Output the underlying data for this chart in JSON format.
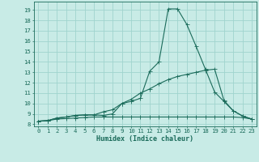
{
  "xlabel": "Humidex (Indice chaleur)",
  "bg_color": "#c8ebe6",
  "grid_color": "#a0d4ce",
  "line_color": "#1a6b5a",
  "xlim": [
    -0.5,
    23.5
  ],
  "ylim": [
    7.8,
    19.8
  ],
  "xticks": [
    0,
    1,
    2,
    3,
    4,
    5,
    6,
    7,
    8,
    9,
    10,
    11,
    12,
    13,
    14,
    15,
    16,
    17,
    18,
    19,
    20,
    21,
    22,
    23
  ],
  "yticks": [
    8,
    9,
    10,
    11,
    12,
    13,
    14,
    15,
    16,
    17,
    18,
    19
  ],
  "line1_x": [
    0,
    1,
    2,
    3,
    4,
    5,
    6,
    7,
    8,
    9,
    10,
    11,
    12,
    13,
    14,
    15,
    16,
    17,
    18,
    19,
    20,
    21,
    22,
    23
  ],
  "line1_y": [
    8.3,
    8.35,
    8.6,
    8.7,
    8.85,
    8.9,
    8.9,
    8.85,
    9.0,
    10.0,
    10.2,
    10.5,
    13.1,
    14.0,
    19.1,
    19.1,
    17.6,
    15.5,
    13.3,
    11.1,
    10.2,
    9.3,
    8.8,
    8.5
  ],
  "line2_x": [
    0,
    1,
    2,
    3,
    4,
    5,
    6,
    7,
    8,
    9,
    10,
    11,
    12,
    13,
    14,
    15,
    16,
    17,
    18,
    19,
    20,
    21,
    22,
    23
  ],
  "line2_y": [
    8.3,
    8.35,
    8.6,
    8.7,
    8.85,
    8.9,
    8.9,
    9.2,
    9.4,
    10.0,
    10.4,
    11.0,
    11.4,
    11.9,
    12.3,
    12.6,
    12.8,
    13.0,
    13.2,
    13.3,
    10.3,
    9.3,
    8.8,
    8.5
  ],
  "line3_x": [
    0,
    1,
    2,
    3,
    4,
    5,
    6,
    7,
    8,
    9,
    10,
    11,
    12,
    13,
    14,
    15,
    16,
    17,
    18,
    19,
    20,
    21,
    22,
    23
  ],
  "line3_y": [
    8.3,
    8.35,
    8.5,
    8.55,
    8.6,
    8.65,
    8.7,
    8.7,
    8.7,
    8.7,
    8.7,
    8.7,
    8.7,
    8.7,
    8.7,
    8.7,
    8.7,
    8.7,
    8.7,
    8.7,
    8.7,
    8.7,
    8.65,
    8.5
  ],
  "tick_fontsize": 5.2,
  "xlabel_fontsize": 6.0,
  "marker_size": 1.8,
  "line_width": 0.8
}
